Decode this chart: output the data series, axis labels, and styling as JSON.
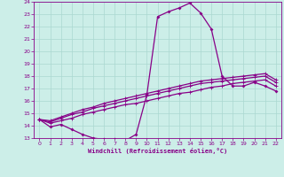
{
  "xlabel": "Windchill (Refroidissement éolien,°C)",
  "xlim": [
    -0.5,
    22.5
  ],
  "ylim": [
    13,
    24
  ],
  "xticks": [
    0,
    1,
    2,
    3,
    4,
    5,
    6,
    7,
    8,
    9,
    10,
    11,
    12,
    13,
    14,
    15,
    16,
    17,
    18,
    19,
    20,
    21,
    22
  ],
  "yticks": [
    13,
    14,
    15,
    16,
    17,
    18,
    19,
    20,
    21,
    22,
    23,
    24
  ],
  "background_color": "#cceee8",
  "line_color": "#880088",
  "grid_color": "#aad8d0",
  "series_main": [
    14.5,
    13.9,
    14.1,
    13.7,
    13.3,
    13.0,
    12.9,
    12.9,
    12.8,
    13.3,
    16.5,
    22.8,
    23.2,
    23.5,
    23.9,
    23.1,
    21.8,
    18.0,
    17.2,
    17.2,
    17.5,
    17.2,
    16.8
  ],
  "series_b": [
    14.5,
    14.2,
    14.4,
    14.6,
    14.9,
    15.1,
    15.3,
    15.5,
    15.7,
    15.8,
    16.0,
    16.2,
    16.4,
    16.6,
    16.7,
    16.9,
    17.1,
    17.2,
    17.4,
    17.5,
    17.6,
    17.7,
    17.2
  ],
  "series_c": [
    14.5,
    14.3,
    14.6,
    14.9,
    15.1,
    15.4,
    15.6,
    15.8,
    16.0,
    16.2,
    16.4,
    16.6,
    16.8,
    17.0,
    17.2,
    17.4,
    17.5,
    17.6,
    17.7,
    17.8,
    17.9,
    18.0,
    17.5
  ],
  "series_d": [
    14.5,
    14.4,
    14.7,
    15.0,
    15.3,
    15.5,
    15.8,
    16.0,
    16.2,
    16.4,
    16.6,
    16.8,
    17.0,
    17.2,
    17.4,
    17.6,
    17.7,
    17.8,
    17.9,
    18.0,
    18.1,
    18.2,
    17.7
  ]
}
